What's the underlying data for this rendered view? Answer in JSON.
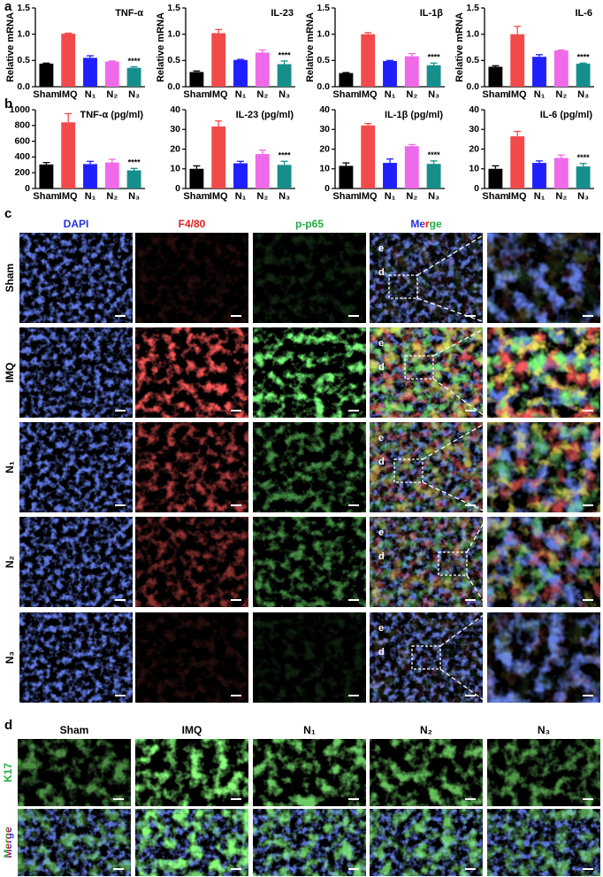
{
  "chart_data": [
    {
      "type": "bar",
      "title": "TNF-α",
      "ylabel": "Relative mRNA",
      "categories": [
        "Sham",
        "IMQ",
        "N₁",
        "N₂",
        "N₃"
      ],
      "values": [
        0.44,
        1.01,
        0.55,
        0.48,
        0.36
      ],
      "errors": [
        0.01,
        0.01,
        0.04,
        0.01,
        0.02
      ],
      "significance_labels": [
        null,
        null,
        null,
        null,
        "****"
      ],
      "colors": [
        "#000000",
        "#f24a4a",
        "#1f1fff",
        "#ee6ae8",
        "#168f8c"
      ],
      "ylim": [
        0,
        1.5
      ],
      "yticks": [
        {
          "value": 0,
          "label": "0.0"
        },
        {
          "value": 0.5,
          "label": "0.5"
        },
        {
          "value": 1,
          "label": "1.0"
        },
        {
          "value": 1.5,
          "label": "1.5"
        }
      ]
    },
    {
      "type": "bar",
      "title": "IL-23",
      "ylabel": "Relative mRNA",
      "categories": [
        "Sham",
        "IMQ",
        "N₁",
        "N₂",
        "N₃"
      ],
      "values": [
        0.28,
        1.02,
        0.51,
        0.65,
        0.43
      ],
      "errors": [
        0.02,
        0.07,
        0.01,
        0.05,
        0.06
      ],
      "significance_labels": [
        null,
        null,
        null,
        null,
        "****"
      ],
      "colors": [
        "#000000",
        "#f24a4a",
        "#1f1fff",
        "#ee6ae8",
        "#168f8c"
      ],
      "ylim": [
        0,
        1.5
      ],
      "yticks": [
        {
          "value": 0,
          "label": "0.0"
        },
        {
          "value": 0.5,
          "label": "0.5"
        },
        {
          "value": 1,
          "label": "1.0"
        },
        {
          "value": 1.5,
          "label": "1.5"
        }
      ]
    },
    {
      "type": "bar",
      "title": "IL-1β",
      "ylabel": "Relative mRNA",
      "categories": [
        "Sham",
        "IMQ",
        "N₁",
        "N₂",
        "N₃"
      ],
      "values": [
        0.26,
        1.0,
        0.49,
        0.58,
        0.41
      ],
      "errors": [
        0.01,
        0.03,
        0.01,
        0.05,
        0.04
      ],
      "significance_labels": [
        null,
        null,
        null,
        null,
        "****"
      ],
      "colors": [
        "#000000",
        "#f24a4a",
        "#1f1fff",
        "#ee6ae8",
        "#168f8c"
      ],
      "ylim": [
        0,
        1.5
      ],
      "yticks": [
        {
          "value": 0,
          "label": "0.0"
        },
        {
          "value": 0.5,
          "label": "0.5"
        },
        {
          "value": 1,
          "label": "1.0"
        },
        {
          "value": 1.5,
          "label": "1.5"
        }
      ]
    },
    {
      "type": "bar",
      "title": "IL-6",
      "ylabel": "Relative mRNA",
      "categories": [
        "Sham",
        "IMQ",
        "N₁",
        "N₂",
        "N₃"
      ],
      "values": [
        0.38,
        1.0,
        0.57,
        0.69,
        0.44
      ],
      "errors": [
        0.02,
        0.15,
        0.04,
        0.01,
        0.01
      ],
      "significance_labels": [
        null,
        null,
        null,
        null,
        "****"
      ],
      "colors": [
        "#000000",
        "#f24a4a",
        "#1f1fff",
        "#ee6ae8",
        "#168f8c"
      ],
      "ylim": [
        0,
        1.5
      ],
      "yticks": [
        {
          "value": 0,
          "label": "0.0"
        },
        {
          "value": 0.5,
          "label": "0.5"
        },
        {
          "value": 1,
          "label": "1.0"
        },
        {
          "value": 1.5,
          "label": "1.5"
        }
      ]
    },
    {
      "type": "bar",
      "title": "TNF-α (pg/ml)",
      "categories": [
        "Sham",
        "IMQ",
        "N₁",
        "N₂",
        "N₃"
      ],
      "values": [
        305,
        840,
        310,
        330,
        230
      ],
      "errors": [
        25,
        110,
        35,
        40,
        25
      ],
      "significance_labels": [
        null,
        null,
        null,
        null,
        "****"
      ],
      "colors": [
        "#000000",
        "#f24a4a",
        "#1f1fff",
        "#ee6ae8",
        "#168f8c"
      ],
      "ylim": [
        0,
        1000
      ],
      "yticks": [
        0,
        200,
        400,
        600,
        800,
        1000
      ]
    },
    {
      "type": "bar",
      "title": "IL-23 (pg/ml)",
      "categories": [
        "Sham",
        "IMQ",
        "N₁",
        "N₂",
        "N₃"
      ],
      "values": [
        10,
        31.5,
        12.8,
        17.5,
        12
      ],
      "errors": [
        1.5,
        2.8,
        1,
        2,
        1.8
      ],
      "significance_labels": [
        null,
        null,
        null,
        null,
        "****"
      ],
      "colors": [
        "#000000",
        "#f24a4a",
        "#1f1fff",
        "#ee6ae8",
        "#168f8c"
      ],
      "ylim": [
        0,
        40
      ],
      "yticks": [
        0,
        10,
        20,
        30,
        40
      ]
    },
    {
      "type": "bar",
      "title": "IL-1β (pg/ml)",
      "categories": [
        "Sham",
        "IMQ",
        "N₁",
        "N₂",
        "N₃"
      ],
      "values": [
        11.5,
        32,
        13,
        21.5,
        12.5
      ],
      "errors": [
        1.5,
        1,
        2,
        0.8,
        1.5
      ],
      "significance_labels": [
        null,
        null,
        null,
        null,
        "****"
      ],
      "colors": [
        "#000000",
        "#f24a4a",
        "#1f1fff",
        "#ee6ae8",
        "#168f8c"
      ],
      "ylim": [
        0,
        40
      ],
      "yticks": [
        0,
        10,
        20,
        30,
        40
      ]
    },
    {
      "type": "bar",
      "title": "IL-6 (pg/ml)",
      "categories": [
        "Sham",
        "IMQ",
        "N₁",
        "N₂",
        "N₃"
      ],
      "values": [
        10,
        26.5,
        13,
        15.5,
        11.2
      ],
      "errors": [
        1.5,
        2.5,
        1,
        1.5,
        1.5
      ],
      "significance_labels": [
        null,
        null,
        null,
        null,
        "****"
      ],
      "colors": [
        "#000000",
        "#f24a4a",
        "#1f1fff",
        "#ee6ae8",
        "#168f8c"
      ],
      "ylim": [
        0,
        40
      ],
      "yticks": [
        0,
        10,
        20,
        30,
        40
      ]
    }
  ],
  "panel_labels": [
    "a",
    "b",
    "c",
    "d"
  ],
  "panel_c": {
    "columns": [
      "DAPI",
      "F4/80",
      "p-p65",
      "Merge"
    ],
    "rows": [
      "Sham",
      "IMQ",
      "N₁",
      "N₂",
      "N₃"
    ],
    "region_labels": [
      "e",
      "d"
    ]
  },
  "panel_d": {
    "columns": [
      "Sham",
      "IMQ",
      "N₁",
      "N₂",
      "N₃"
    ],
    "rows": [
      "K17",
      "Merge"
    ]
  }
}
